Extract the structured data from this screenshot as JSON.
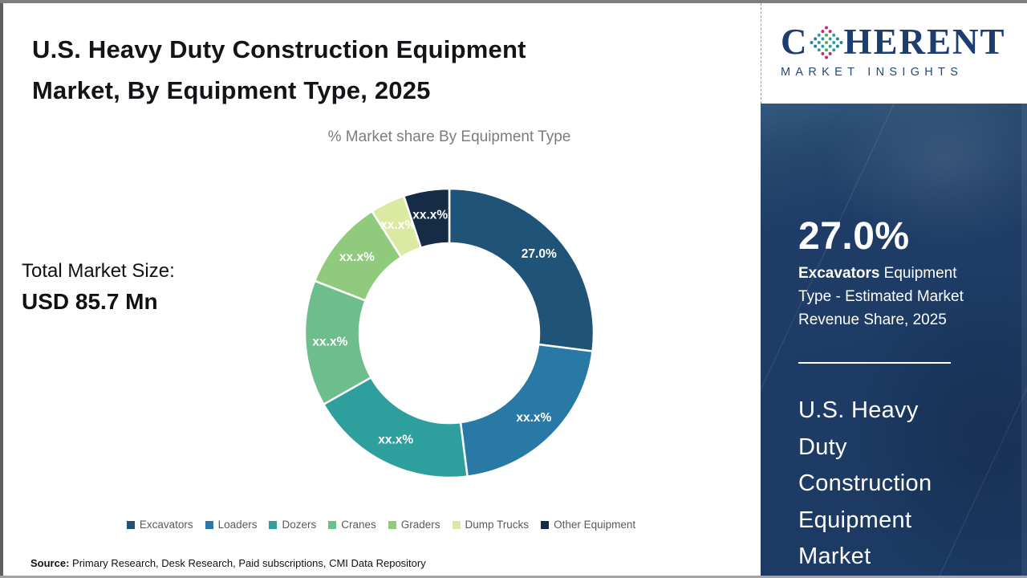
{
  "header": {
    "title_lines": [
      "U.S. Heavy Duty Construction Equipment",
      "Market, By Equipment Type, 2025"
    ],
    "subtitle": "% Market share By Equipment Type"
  },
  "stats": {
    "total_label": "Total Market Size:",
    "total_value": "USD 85.7 Mn"
  },
  "logo": {
    "word_start": "C",
    "word_end": "HERENT",
    "tagline": "MARKET INSIGHTS"
  },
  "sidebar": {
    "stat_value": "27.0%",
    "stat_desc_highlight": "Excavators",
    "stat_desc_rest": " Equipment Type - Estimated Market Revenue Share, 2025",
    "title_lines": [
      "U.S. Heavy",
      "Duty",
      "Construction",
      "Equipment",
      "Market"
    ]
  },
  "source": {
    "label": "Source:",
    "text": " Primary Research, Desk Research, Paid subscriptions, CMI Data Repository"
  },
  "colors": {
    "sidebar_navy": "#1c3a64",
    "logo_navy": "#1d3d70",
    "legend_text": "#595959"
  },
  "chart_data": {
    "type": "donut",
    "title": "% Market share By Equipment Type",
    "legend_position": "bottom",
    "total_market_size": "USD 85.7 Mn",
    "segments": [
      {
        "label": "Excavators",
        "display": "27.0%",
        "value": 27.0,
        "color": "#1f5377"
      },
      {
        "label": "Loaders",
        "display": "xx.x%",
        "value": 21.0,
        "color": "#2879a6"
      },
      {
        "label": "Dozers",
        "display": "xx.x%",
        "value": 18.8,
        "color": "#2f9f9e"
      },
      {
        "label": "Cranes",
        "display": "xx.x%",
        "value": 14.1,
        "color": "#6ebd8c"
      },
      {
        "label": "Graders",
        "display": "xx.x%",
        "value": 10.1,
        "color": "#90cb7d"
      },
      {
        "label": "Dump Trucks",
        "display": "xx.x%",
        "value": 3.9,
        "color": "#dbe9a2"
      },
      {
        "label": "Other Equipment",
        "display": "xx.x%",
        "value": 5.1,
        "color": "#152c44"
      }
    ]
  }
}
